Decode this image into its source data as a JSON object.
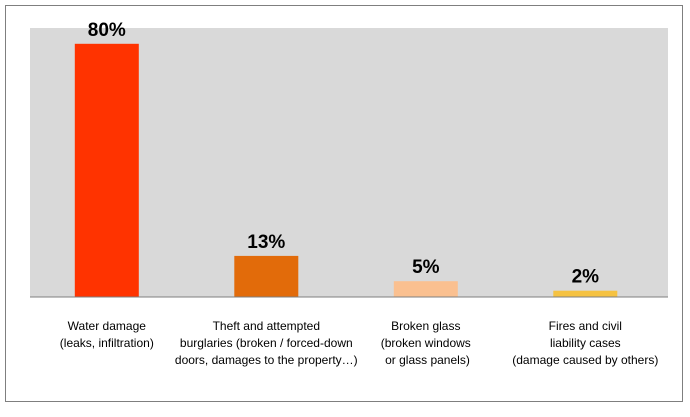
{
  "chart_data": {
    "type": "bar",
    "categories": [
      [
        "Water damage",
        "(leaks, infiltration)"
      ],
      [
        "Theft and attempted",
        "burglaries (broken / forced-down",
        "doors, damages to the property…)"
      ],
      [
        "Broken glass",
        "(broken windows",
        " or glass panels)"
      ],
      [
        "Fires and civil",
        "liability cases",
        "(damage caused by others)"
      ]
    ],
    "values": [
      80,
      13,
      5,
      2
    ],
    "value_labels": [
      "80%",
      "13%",
      "5%",
      "2%"
    ],
    "bar_colors": [
      "#ff3300",
      "#e26b0a",
      "#fac090",
      "#f5c242"
    ],
    "plot_background": "#d9d9d9",
    "ylim": [
      0,
      85
    ],
    "grid": false,
    "legend": "none",
    "title": "",
    "xlabel": "",
    "ylabel": ""
  }
}
